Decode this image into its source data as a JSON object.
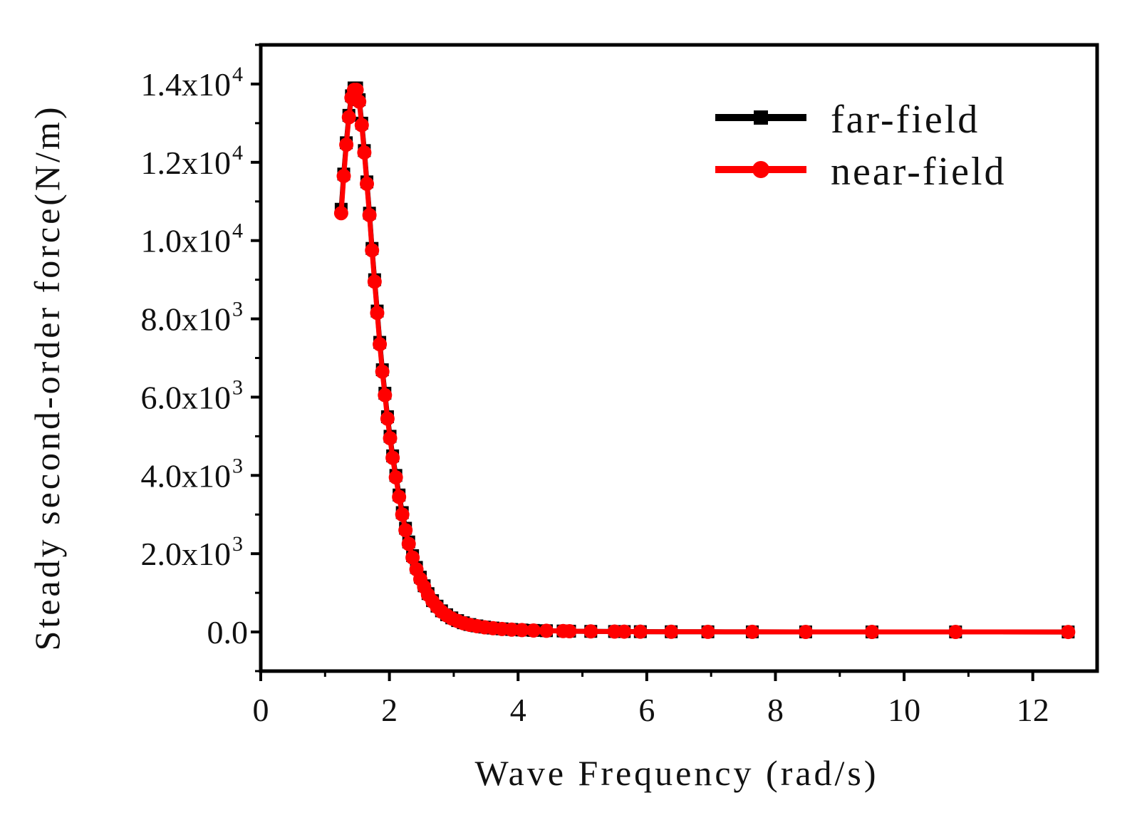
{
  "chart_data": {
    "type": "line",
    "title": "",
    "xlabel": "Wave Frequency (rad/s)",
    "ylabel": "Steady second-order force(N/m)",
    "xlim": [
      0,
      13
    ],
    "ylim": [
      -1000,
      15000
    ],
    "x_ticks": [
      0,
      2,
      4,
      6,
      8,
      10,
      12
    ],
    "x_tick_labels": [
      "0",
      "2",
      "4",
      "6",
      "8",
      "10",
      "12"
    ],
    "y_ticks": [
      {
        "value": 0,
        "mantissa": "0.0",
        "exp": ""
      },
      {
        "value": 2000,
        "mantissa": "2.0x10",
        "exp": "3"
      },
      {
        "value": 4000,
        "mantissa": "4.0x10",
        "exp": "3"
      },
      {
        "value": 6000,
        "mantissa": "6.0x10",
        "exp": "3"
      },
      {
        "value": 8000,
        "mantissa": "8.0x10",
        "exp": "3"
      },
      {
        "value": 10000,
        "mantissa": "1.0x10",
        "exp": "4"
      },
      {
        "value": 12000,
        "mantissa": "1.2x10",
        "exp": "4"
      },
      {
        "value": 14000,
        "mantissa": "1.4x10",
        "exp": "4"
      }
    ],
    "grid": false,
    "legend": {
      "position": "top-right"
    },
    "x": [
      1.25,
      1.29,
      1.33,
      1.37,
      1.41,
      1.45,
      1.49,
      1.53,
      1.57,
      1.61,
      1.65,
      1.69,
      1.73,
      1.77,
      1.81,
      1.85,
      1.89,
      1.93,
      1.97,
      2.01,
      2.05,
      2.1,
      2.15,
      2.2,
      2.25,
      2.3,
      2.36,
      2.42,
      2.48,
      2.54,
      2.6,
      2.67,
      2.74,
      2.81,
      2.89,
      2.97,
      3.06,
      3.15,
      3.25,
      3.36,
      3.48,
      3.61,
      3.75,
      3.9,
      4.06,
      4.24,
      4.44,
      4.7,
      4.8,
      5.13,
      5.5,
      5.65,
      5.9,
      6.38,
      6.95,
      7.64,
      8.47,
      9.5,
      10.8,
      12.55
    ],
    "series": [
      {
        "name": "far-field",
        "color": "#000000",
        "marker": "square",
        "values": [
          10800,
          11700,
          12500,
          13200,
          13700,
          13900,
          13900,
          13600,
          13000,
          12300,
          11500,
          10700,
          9800,
          9000,
          8200,
          7400,
          6700,
          6100,
          5500,
          5000,
          4500,
          4000,
          3500,
          3050,
          2650,
          2300,
          1950,
          1650,
          1400,
          1180,
          980,
          800,
          660,
          540,
          440,
          360,
          290,
          235,
          190,
          155,
          125,
          100,
          80,
          64,
          50,
          40,
          32,
          25,
          20,
          15,
          12,
          10,
          8,
          6,
          4,
          3,
          2,
          1,
          1,
          0
        ]
      },
      {
        "name": "near-field",
        "color": "#ff0000",
        "marker": "circle",
        "values": [
          10700,
          11650,
          12450,
          13150,
          13650,
          13850,
          13850,
          13550,
          12950,
          12250,
          11450,
          10650,
          9750,
          8950,
          8150,
          7350,
          6650,
          6050,
          5450,
          4950,
          4450,
          3950,
          3450,
          3000,
          2600,
          2250,
          1900,
          1600,
          1350,
          1150,
          950,
          780,
          640,
          520,
          425,
          345,
          280,
          225,
          182,
          148,
          120,
          96,
          77,
          61,
          48,
          38,
          30,
          24,
          19,
          14,
          11,
          9,
          7,
          5,
          4,
          3,
          2,
          1,
          1,
          0
        ]
      }
    ]
  }
}
